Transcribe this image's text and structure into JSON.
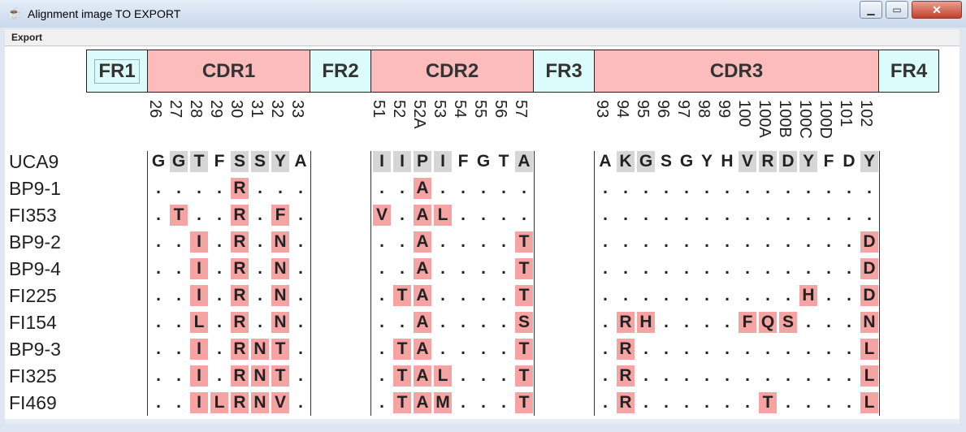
{
  "window": {
    "title": "Alignment image TO EXPORT"
  },
  "menu": {
    "export_label": "Export"
  },
  "regions": [
    {
      "label": "FR1",
      "type": "fr"
    },
    {
      "label": "CDR1",
      "type": "cdr"
    },
    {
      "label": "FR2",
      "type": "fr"
    },
    {
      "label": "CDR2",
      "type": "cdr"
    },
    {
      "label": "FR3",
      "type": "fr"
    },
    {
      "label": "CDR3",
      "type": "cdr"
    },
    {
      "label": "FR4",
      "type": "fr"
    }
  ],
  "positions": {
    "cdr1": [
      "26",
      "27",
      "28",
      "29",
      "30",
      "31",
      "32",
      "33"
    ],
    "cdr2": [
      "51",
      "52",
      "52A",
      "53",
      "54",
      "55",
      "56",
      "57"
    ],
    "cdr3": [
      "93",
      "94",
      "95",
      "96",
      "97",
      "98",
      "99",
      "100",
      "100A",
      "100B",
      "100C",
      "100D",
      "101",
      "102"
    ]
  },
  "reference": {
    "name": "UCA9",
    "cdr1": "GGTFSSYA",
    "cdr2": "IIPIFGTA",
    "cdr3": "AKGSGYHVRDYFDY",
    "highlight": {
      "cdr1": [
        1,
        2,
        4,
        5,
        6
      ],
      "cdr2": [
        0,
        1,
        2,
        3,
        7
      ],
      "cdr3": [
        1,
        2,
        7,
        8,
        9,
        10,
        13
      ]
    }
  },
  "sequences": [
    {
      "name": "BP9-1",
      "cdr1": "....R...",
      "cdr2": "..A.....",
      "cdr3": ".............."
    },
    {
      "name": "FI353",
      "cdr1": ".T..R.F.",
      "cdr2": "V.AL....",
      "cdr3": ".............."
    },
    {
      "name": "BP9-2",
      "cdr1": "..I.R.N.",
      "cdr2": "..A....T",
      "cdr3": ".............D"
    },
    {
      "name": "BP9-4",
      "cdr1": "..I.R.N.",
      "cdr2": "..A....T",
      "cdr3": ".............D"
    },
    {
      "name": "FI225",
      "cdr1": "..I.R.N.",
      "cdr2": ".TA....T",
      "cdr3": "..........H..D"
    },
    {
      "name": "FI154",
      "cdr1": "..L.R.N.",
      "cdr2": "..A....S",
      "cdr3": ".RH....FQS...N"
    },
    {
      "name": "BP9-3",
      "cdr1": "..I.RNT.",
      "cdr2": ".TA....T",
      "cdr3": ".R...........L"
    },
    {
      "name": "FI325",
      "cdr1": "..I.RNT.",
      "cdr2": ".TAL...T",
      "cdr3": ".R...........L"
    },
    {
      "name": "FI469",
      "cdr1": "..ILRNV.",
      "cdr2": ".TAM...T",
      "cdr3": ".R......T....L"
    }
  ],
  "colors": {
    "mutation": "#f5a3a3",
    "reference_highlight": "#d6d6d6",
    "fr": "#dcfcfb",
    "cdr": "#fcbcbc"
  }
}
